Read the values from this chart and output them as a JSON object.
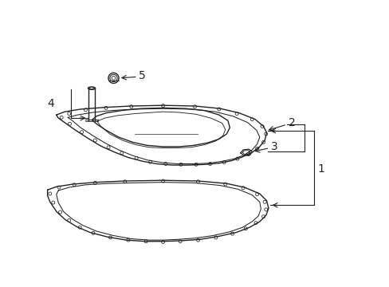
{
  "bg_color": "#ffffff",
  "line_color": "#222222",
  "lw": 1.0,
  "figsize": [
    4.89,
    3.6
  ],
  "dpi": 100
}
